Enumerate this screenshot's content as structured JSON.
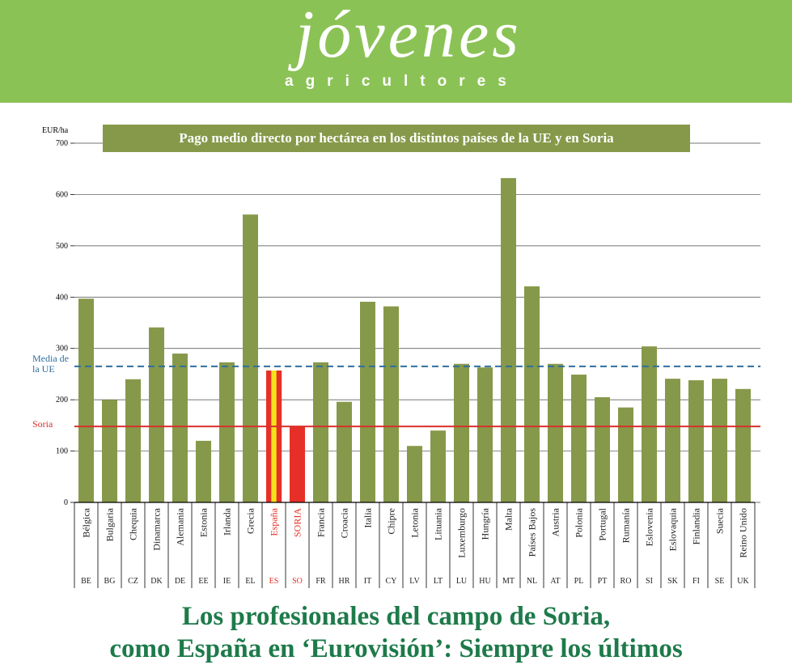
{
  "header": {
    "logo_script": "jóvenes",
    "logo_sub": "agricultores"
  },
  "chart_data": {
    "type": "bar",
    "title": "Pago medio directo por hectárea en los distintos países de la UE y en Soria",
    "y_label": "EUR/ha",
    "categories": [
      "Bélgica",
      "Bulgaria",
      "Chequia",
      "Dinamarca",
      "Alemania",
      "Estonia",
      "Irlanda",
      "Grecia",
      "España",
      "SORIA",
      "Francia",
      "Croacia",
      "Italia",
      "Chipre",
      "Letonia",
      "Lituania",
      "Luxemburgo",
      "Hungría",
      "Malta",
      "Países Bajos",
      "Austria",
      "Polonia",
      "Portugal",
      "Rumanía",
      "Eslovenia",
      "Eslovaquia",
      "Finlandia",
      "Suecia",
      "Reino Unido"
    ],
    "codes": [
      "BE",
      "BG",
      "CZ",
      "DK",
      "DE",
      "EE",
      "IE",
      "EL",
      "ES",
      "SO",
      "FR",
      "HR",
      "IT",
      "CY",
      "LV",
      "LT",
      "LU",
      "HU",
      "MT",
      "NL",
      "AT",
      "PL",
      "PT",
      "RO",
      "SI",
      "SK",
      "FI",
      "SE",
      "UK"
    ],
    "values": [
      397,
      200,
      240,
      341,
      290,
      120,
      273,
      561,
      257,
      148,
      273,
      196,
      391,
      382,
      110,
      140,
      270,
      263,
      632,
      421,
      270,
      249,
      205,
      185,
      304,
      241,
      238,
      241,
      221
    ],
    "color": "#86994a",
    "category_colors": [
      [
        "#86994a"
      ],
      [
        "#86994a"
      ],
      [
        "#86994a"
      ],
      [
        "#86994a"
      ],
      [
        "#86994a"
      ],
      [
        "#86994a"
      ],
      [
        "#86994a"
      ],
      [
        "#86994a"
      ],
      [
        "#e63027",
        "#f5e31a",
        "#e63027"
      ],
      [
        "#e63027"
      ],
      [
        "#86994a"
      ],
      [
        "#86994a"
      ],
      [
        "#86994a"
      ],
      [
        "#86994a"
      ],
      [
        "#86994a"
      ],
      [
        "#86994a"
      ],
      [
        "#86994a"
      ],
      [
        "#86994a"
      ],
      [
        "#86994a"
      ],
      [
        "#86994a"
      ],
      [
        "#86994a"
      ],
      [
        "#86994a"
      ],
      [
        "#86994a"
      ],
      [
        "#86994a"
      ],
      [
        "#86994a"
      ],
      [
        "#86994a"
      ],
      [
        "#86994a"
      ],
      [
        "#86994a"
      ],
      [
        "#86994a"
      ]
    ],
    "ylim": [
      0,
      700
    ],
    "yticks": [
      0,
      100,
      200,
      300,
      400,
      500,
      600,
      700
    ],
    "grid": true,
    "reference_lines": [
      {
        "label": "Media de la UE",
        "value": 265,
        "color": "#2f6f9f",
        "dashed": true
      },
      {
        "label": "Soria",
        "value": 148,
        "color": "#d9302c",
        "dashed": false
      }
    ]
  },
  "headline": [
    "Los profesionales del campo de Soria,",
    "como España en ‘Eurovisión’: Siempre los últimos"
  ]
}
